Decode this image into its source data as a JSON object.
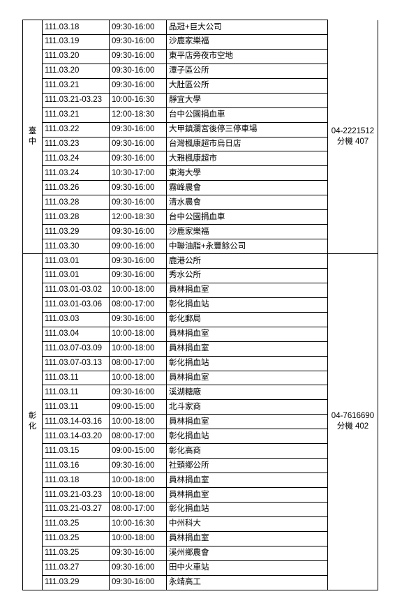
{
  "regions": [
    {
      "name": "臺中",
      "phone": "04-2221512\n分機 407",
      "rows": [
        {
          "date": "111.03.18",
          "time": "09:30-16:00",
          "loc": "品冠+巨大公司"
        },
        {
          "date": "111.03.19",
          "time": "09:30-16:00",
          "loc": "沙鹿家樂福"
        },
        {
          "date": "111.03.20",
          "time": "09:30-16:00",
          "loc": "東平店旁夜市空地"
        },
        {
          "date": "111.03.20",
          "time": "09:30-16:00",
          "loc": "潭子區公所"
        },
        {
          "date": "111.03.21",
          "time": "09:30-16:00",
          "loc": "大肚區公所"
        },
        {
          "date": "111.03.21-03.23",
          "time": "10:00-16:30",
          "loc": "靜宜大學"
        },
        {
          "date": "111.03.21",
          "time": "12:00-18:30",
          "loc": "台中公園捐血車"
        },
        {
          "date": "111.03.22",
          "time": "09:30-16:00",
          "loc": "大甲鎮瀾宮後停三停車場"
        },
        {
          "date": "111.03.23",
          "time": "09:30-16:00",
          "loc": "台灣楓康超市烏日店"
        },
        {
          "date": "111.03.24",
          "time": "09:30-16:00",
          "loc": "大雅楓康超市"
        },
        {
          "date": "111.03.24",
          "time": "10:30-17:00",
          "loc": "東海大學"
        },
        {
          "date": "111.03.26",
          "time": "09:30-16:00",
          "loc": "霧峰農會"
        },
        {
          "date": "111.03.28",
          "time": "09:30-16:00",
          "loc": "清水農會"
        },
        {
          "date": "111.03.28",
          "time": "12:00-18:30",
          "loc": "台中公園捐血車"
        },
        {
          "date": "111.03.29",
          "time": "09:30-16:00",
          "loc": "沙鹿家樂福"
        },
        {
          "date": "111.03.30",
          "time": "09:00-16:00",
          "loc": "中聯油脂+永豐餘公司"
        }
      ]
    },
    {
      "name": "彰化",
      "phone": "04-7616690\n分機 402",
      "rows": [
        {
          "date": "111.03.01",
          "time": "09:30-16:00",
          "loc": "鹿港公所"
        },
        {
          "date": "111.03.01",
          "time": "09:30-16:00",
          "loc": "秀水公所"
        },
        {
          "date": "111.03.01-03.02",
          "time": "10:00-18:00",
          "loc": "員林捐血室"
        },
        {
          "date": "111.03.01-03.06",
          "time": "08:00-17:00",
          "loc": "彰化捐血站"
        },
        {
          "date": "111.03.03",
          "time": "09:30-16:00",
          "loc": "彰化郵局"
        },
        {
          "date": "111.03.04",
          "time": "10:00-18:00",
          "loc": "員林捐血室"
        },
        {
          "date": "111.03.07-03.09",
          "time": "10:00-18:00",
          "loc": "員林捐血室"
        },
        {
          "date": "111.03.07-03.13",
          "time": "08:00-17:00",
          "loc": "彰化捐血站"
        },
        {
          "date": "111.03.11",
          "time": "10:00-18:00",
          "loc": "員林捐血室"
        },
        {
          "date": "111.03.11",
          "time": "09:30-16:00",
          "loc": "溪湖糖廠"
        },
        {
          "date": "111.03.11",
          "time": "09:00-15:00",
          "loc": "北斗家商"
        },
        {
          "date": "111.03.14-03.16",
          "time": "10:00-18:00",
          "loc": "員林捐血室"
        },
        {
          "date": "111.03.14-03.20",
          "time": "08:00-17:00",
          "loc": "彰化捐血站"
        },
        {
          "date": "111.03.15",
          "time": "09:00-15:00",
          "loc": "彰化高商"
        },
        {
          "date": "111.03.16",
          "time": "09:30-16:00",
          "loc": "社頭鄉公所"
        },
        {
          "date": "111.03.18",
          "time": "10:00-18:00",
          "loc": "員林捐血室"
        },
        {
          "date": "111.03.21-03.23",
          "time": "10:00-18:00",
          "loc": "員林捐血室"
        },
        {
          "date": "111.03.21-03.27",
          "time": "08:00-17:00",
          "loc": "彰化捐血站"
        },
        {
          "date": "111.03.25",
          "time": "10:00-16:30",
          "loc": "中州科大"
        },
        {
          "date": "111.03.25",
          "time": "10:00-18:00",
          "loc": "員林捐血室"
        },
        {
          "date": "111.03.25",
          "time": "09:30-16:00",
          "loc": "溪州鄉農會"
        },
        {
          "date": "111.03.27",
          "time": "09:30-16:00",
          "loc": "田中火車站"
        },
        {
          "date": "111.03.29",
          "time": "09:30-16:00",
          "loc": "永靖高工"
        }
      ]
    }
  ]
}
